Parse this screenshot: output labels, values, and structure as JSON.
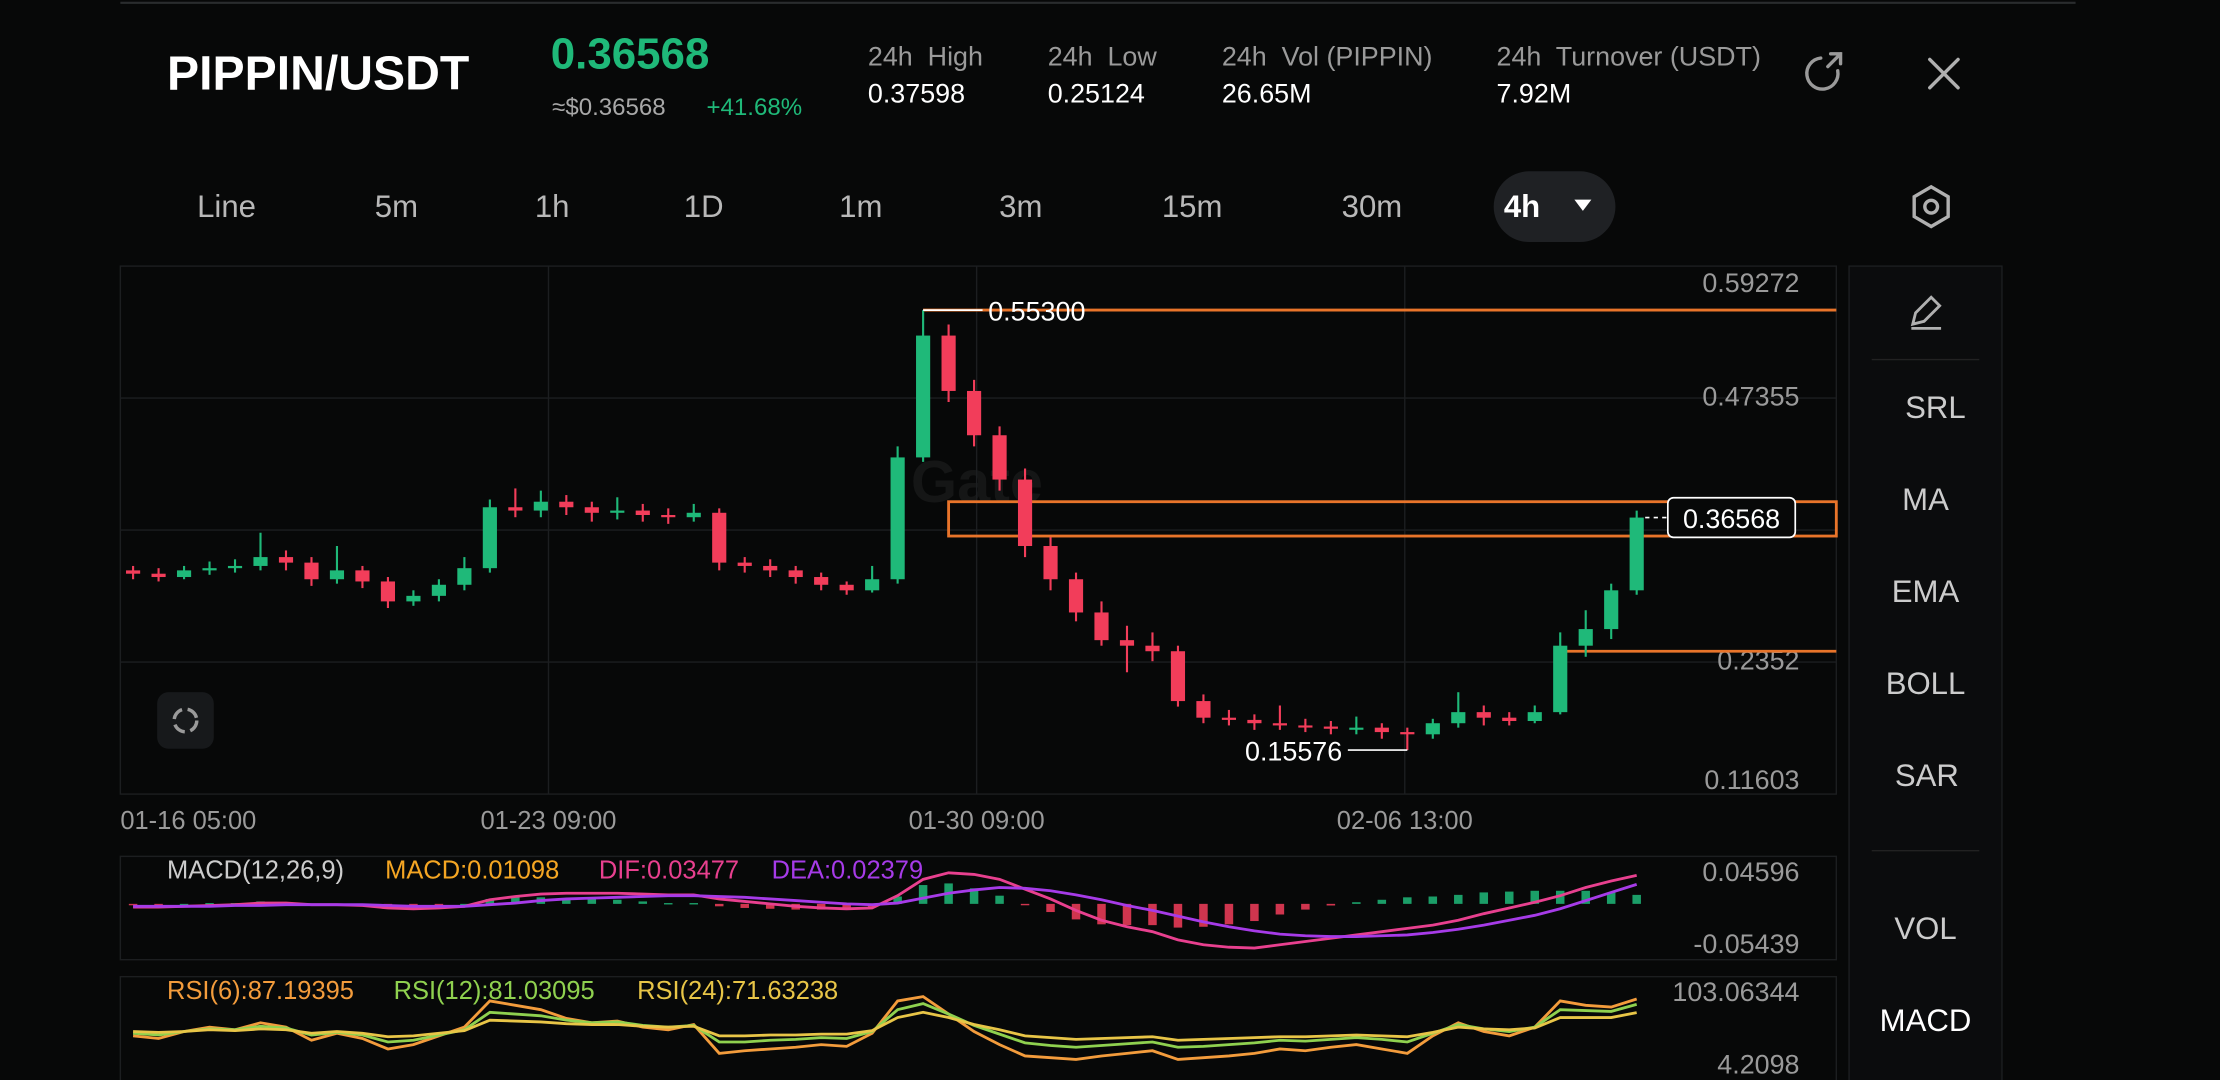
{
  "header": {
    "pair": "PIPPIN/USDT",
    "price": "0.36568",
    "usd_price": "≈$0.36568",
    "change": "+41.68%",
    "stats": [
      {
        "label": "24h  High",
        "value": "0.37598"
      },
      {
        "label": "24h  Low",
        "value": "0.25124"
      },
      {
        "label": "24h  Vol (PIPPIN)",
        "value": "26.65M"
      },
      {
        "label": "24h  Turnover (USDT)",
        "value": "7.92M"
      }
    ]
  },
  "tabs": [
    "Line",
    "5m",
    "1h",
    "1D",
    "1m",
    "3m",
    "15m",
    "30m",
    "4h"
  ],
  "active_tab": 8,
  "sidebar": [
    "SRL",
    "MA",
    "EMA",
    "BOLL",
    "SAR",
    "VOL",
    "MACD"
  ],
  "chart_data": [
    {
      "type": "candlestick",
      "up_color": "#1fb979",
      "down_color": "#f23d5a",
      "grid": true,
      "watermark": "Gate",
      "ylim": [
        0.11603,
        0.59272
      ],
      "yticks": [
        0.59272,
        0.47355,
        {
          "value": 0.35437,
          "label": null
        },
        0.2352,
        0.11603
      ],
      "xticks": [
        {
          "value": 0,
          "label": "01-16 05:00"
        },
        {
          "value": 16.3,
          "label": "01-23 09:00"
        },
        {
          "value": 33.1,
          "label": "01-30 09:00"
        },
        {
          "value": 49.9,
          "label": "02-06 13:00"
        }
      ],
      "values": [
        [
          0.318,
          0.322,
          0.31,
          0.315
        ],
        [
          0.315,
          0.32,
          0.308,
          0.312
        ],
        [
          0.312,
          0.322,
          0.31,
          0.318
        ],
        [
          0.318,
          0.326,
          0.314,
          0.32
        ],
        [
          0.32,
          0.328,
          0.316,
          0.322
        ],
        [
          0.322,
          0.352,
          0.318,
          0.33
        ],
        [
          0.33,
          0.336,
          0.318,
          0.325
        ],
        [
          0.325,
          0.33,
          0.304,
          0.31
        ],
        [
          0.31,
          0.34,
          0.306,
          0.318
        ],
        [
          0.318,
          0.322,
          0.302,
          0.308
        ],
        [
          0.308,
          0.312,
          0.284,
          0.29
        ],
        [
          0.29,
          0.3,
          0.286,
          0.295
        ],
        [
          0.295,
          0.31,
          0.29,
          0.305
        ],
        [
          0.305,
          0.33,
          0.3,
          0.32
        ],
        [
          0.32,
          0.382,
          0.316,
          0.375
        ],
        [
          0.375,
          0.392,
          0.366,
          0.372
        ],
        [
          0.372,
          0.39,
          0.366,
          0.38
        ],
        [
          0.38,
          0.386,
          0.368,
          0.375
        ],
        [
          0.375,
          0.38,
          0.362,
          0.37
        ],
        [
          0.37,
          0.384,
          0.364,
          0.372
        ],
        [
          0.372,
          0.378,
          0.362,
          0.368
        ],
        [
          0.368,
          0.374,
          0.36,
          0.366
        ],
        [
          0.366,
          0.378,
          0.362,
          0.37
        ],
        [
          0.37,
          0.374,
          0.318,
          0.325
        ],
        [
          0.325,
          0.33,
          0.316,
          0.322
        ],
        [
          0.322,
          0.328,
          0.312,
          0.318
        ],
        [
          0.318,
          0.322,
          0.306,
          0.312
        ],
        [
          0.312,
          0.316,
          0.3,
          0.305
        ],
        [
          0.305,
          0.308,
          0.296,
          0.3
        ],
        [
          0.3,
          0.322,
          0.298,
          0.31
        ],
        [
          0.31,
          0.43,
          0.306,
          0.42
        ],
        [
          0.42,
          0.553,
          0.416,
          0.53
        ],
        [
          0.53,
          0.54,
          0.47,
          0.48
        ],
        [
          0.48,
          0.49,
          0.43,
          0.44
        ],
        [
          0.44,
          0.448,
          0.39,
          0.4
        ],
        [
          0.4,
          0.41,
          0.33,
          0.34
        ],
        [
          0.34,
          0.348,
          0.3,
          0.31
        ],
        [
          0.31,
          0.316,
          0.272,
          0.28
        ],
        [
          0.28,
          0.29,
          0.25,
          0.255
        ],
        [
          0.255,
          0.268,
          0.226,
          0.25
        ],
        [
          0.25,
          0.262,
          0.236,
          0.245
        ],
        [
          0.245,
          0.25,
          0.195,
          0.2
        ],
        [
          0.2,
          0.206,
          0.18,
          0.185
        ],
        [
          0.185,
          0.192,
          0.178,
          0.183
        ],
        [
          0.183,
          0.188,
          0.174,
          0.18
        ],
        [
          0.18,
          0.196,
          0.174,
          0.178
        ],
        [
          0.178,
          0.184,
          0.172,
          0.177
        ],
        [
          0.177,
          0.182,
          0.17,
          0.175
        ],
        [
          0.175,
          0.186,
          0.17,
          0.176
        ],
        [
          0.176,
          0.18,
          0.166,
          0.172
        ],
        [
          0.172,
          0.176,
          0.15576,
          0.17
        ],
        [
          0.17,
          0.184,
          0.166,
          0.18
        ],
        [
          0.18,
          0.208,
          0.176,
          0.19
        ],
        [
          0.19,
          0.196,
          0.178,
          0.185
        ],
        [
          0.185,
          0.19,
          0.178,
          0.182
        ],
        [
          0.182,
          0.196,
          0.18,
          0.19
        ],
        [
          0.19,
          0.262,
          0.188,
          0.25
        ],
        [
          0.25,
          0.282,
          0.24,
          0.265
        ],
        [
          0.265,
          0.306,
          0.256,
          0.3
        ],
        [
          0.3,
          0.372,
          0.296,
          0.36568
        ]
      ],
      "max_label": {
        "value": 0.553,
        "label": "0.55300"
      },
      "min_label": {
        "value": 0.15576,
        "label": "0.15576"
      },
      "last_label": {
        "value": 0.36568,
        "label": "0.36568"
      },
      "drawings": [
        {
          "from": 31,
          "value": 0.553
        },
        {
          "from": 32,
          "top": 0.38,
          "bottom": 0.349
        },
        {
          "from": 56,
          "value": 0.245
        }
      ],
      "drawing_color": "#e8742a"
    },
    {
      "type": "macd",
      "title": "MACD(12,26,9)",
      "ylim": [
        -0.05439,
        0.04596
      ],
      "yticks": [
        0.04596,
        -0.05439
      ],
      "series": [
        {
          "name": "MACD:0.01098",
          "color": "#f5a623",
          "style": "bar",
          "values": [
            -0.001,
            -0.001,
            0,
            0.001,
            0.001,
            0.003,
            0.002,
            0,
            0,
            -0.001,
            -0.003,
            -0.003,
            -0.002,
            0,
            0.006,
            0.008,
            0.008,
            0.007,
            0.006,
            0.005,
            0.003,
            0.001,
            0.001,
            -0.003,
            -0.005,
            -0.006,
            -0.007,
            -0.007,
            -0.006,
            -0.004,
            0.009,
            0.023,
            0.025,
            0.019,
            0.01,
            -0.001,
            -0.01,
            -0.019,
            -0.025,
            -0.026,
            -0.026,
            -0.029,
            -0.028,
            -0.025,
            -0.021,
            -0.013,
            -0.007,
            -0.002,
            0.002,
            0.005,
            0.008,
            0.009,
            0.011,
            0.014,
            0.015,
            0.016,
            0.016,
            0.016,
            0.014,
            0.01098
          ]
        },
        {
          "name": "DIF:0.03477",
          "color": "#e8408f",
          "values": [
            -0.004,
            -0.004,
            -0.003,
            -0.002,
            -0.001,
            0.001,
            0.001,
            -0.001,
            -0.001,
            -0.002,
            -0.005,
            -0.006,
            -0.005,
            -0.003,
            0.005,
            0.009,
            0.012,
            0.013,
            0.013,
            0.013,
            0.012,
            0.011,
            0.011,
            0.006,
            0.003,
            0,
            -0.003,
            -0.005,
            -0.006,
            -0.005,
            0.01,
            0.03,
            0.038,
            0.036,
            0.03,
            0.018,
            0.006,
            -0.008,
            -0.02,
            -0.028,
            -0.034,
            -0.044,
            -0.05,
            -0.053,
            -0.054,
            -0.05,
            -0.046,
            -0.042,
            -0.038,
            -0.034,
            -0.03,
            -0.026,
            -0.02,
            -0.012,
            -0.005,
            0.002,
            0.01,
            0.02,
            0.028,
            0.03477
          ]
        },
        {
          "name": "DEA:0.02379",
          "color": "#a63be8",
          "values": [
            -0.003,
            -0.003,
            -0.003,
            -0.003,
            -0.002,
            -0.002,
            -0.001,
            -0.001,
            -0.001,
            -0.001,
            -0.002,
            -0.003,
            -0.003,
            -0.003,
            -0.001,
            0.001,
            0.004,
            0.006,
            0.007,
            0.008,
            0.009,
            0.01,
            0.01,
            0.009,
            0.008,
            0.006,
            0.004,
            0.002,
            0,
            -0.001,
            0.001,
            0.007,
            0.013,
            0.017,
            0.02,
            0.019,
            0.016,
            0.011,
            0.005,
            -0.002,
            -0.008,
            -0.015,
            -0.022,
            -0.028,
            -0.033,
            -0.037,
            -0.039,
            -0.04,
            -0.04,
            -0.039,
            -0.038,
            -0.035,
            -0.031,
            -0.026,
            -0.02,
            -0.014,
            -0.006,
            0.004,
            0.014,
            0.02379
          ]
        }
      ]
    },
    {
      "type": "line",
      "ylim": [
        4.2098,
        103.06344
      ],
      "yticks": [
        103.06344,
        4.2098
      ],
      "series": [
        {
          "name": "RSI(6):87.19395",
          "color": "#f39c3c",
          "values": [
            45,
            42,
            50,
            55,
            52,
            60,
            55,
            40,
            48,
            42,
            30,
            35,
            45,
            55,
            85,
            80,
            75,
            65,
            60,
            62,
            55,
            52,
            58,
            25,
            28,
            30,
            32,
            35,
            33,
            48,
            85,
            90,
            70,
            50,
            35,
            22,
            20,
            18,
            22,
            25,
            28,
            18,
            20,
            22,
            25,
            30,
            28,
            32,
            35,
            30,
            25,
            45,
            60,
            50,
            45,
            55,
            85,
            80,
            78,
            87.19395
          ]
        },
        {
          "name": "RSI(12):81.03095",
          "color": "#8fd14f",
          "values": [
            48,
            46,
            50,
            53,
            52,
            56,
            54,
            46,
            49,
            46,
            38,
            40,
            46,
            52,
            72,
            70,
            68,
            63,
            60,
            61,
            57,
            55,
            57,
            38,
            38,
            40,
            41,
            43,
            42,
            50,
            75,
            82,
            70,
            57,
            47,
            37,
            34,
            32,
            34,
            36,
            38,
            32,
            33,
            35,
            37,
            40,
            39,
            41,
            43,
            41,
            38,
            48,
            58,
            53,
            50,
            55,
            75,
            74,
            73,
            81.03095
          ]
        },
        {
          "name": "RSI(24):71.63238",
          "color": "#e8c547",
          "values": [
            50,
            49,
            50,
            52,
            51,
            53,
            52,
            48,
            50,
            48,
            44,
            45,
            48,
            51,
            63,
            62,
            61,
            59,
            58,
            58,
            56,
            55,
            56,
            45,
            45,
            46,
            46,
            47,
            47,
            51,
            66,
            72,
            66,
            58,
            52,
            45,
            43,
            41,
            42,
            43,
            44,
            40,
            41,
            42,
            43,
            44,
            44,
            45,
            46,
            45,
            44,
            49,
            55,
            53,
            52,
            54,
            66,
            66,
            66,
            71.63238
          ]
        }
      ]
    }
  ]
}
